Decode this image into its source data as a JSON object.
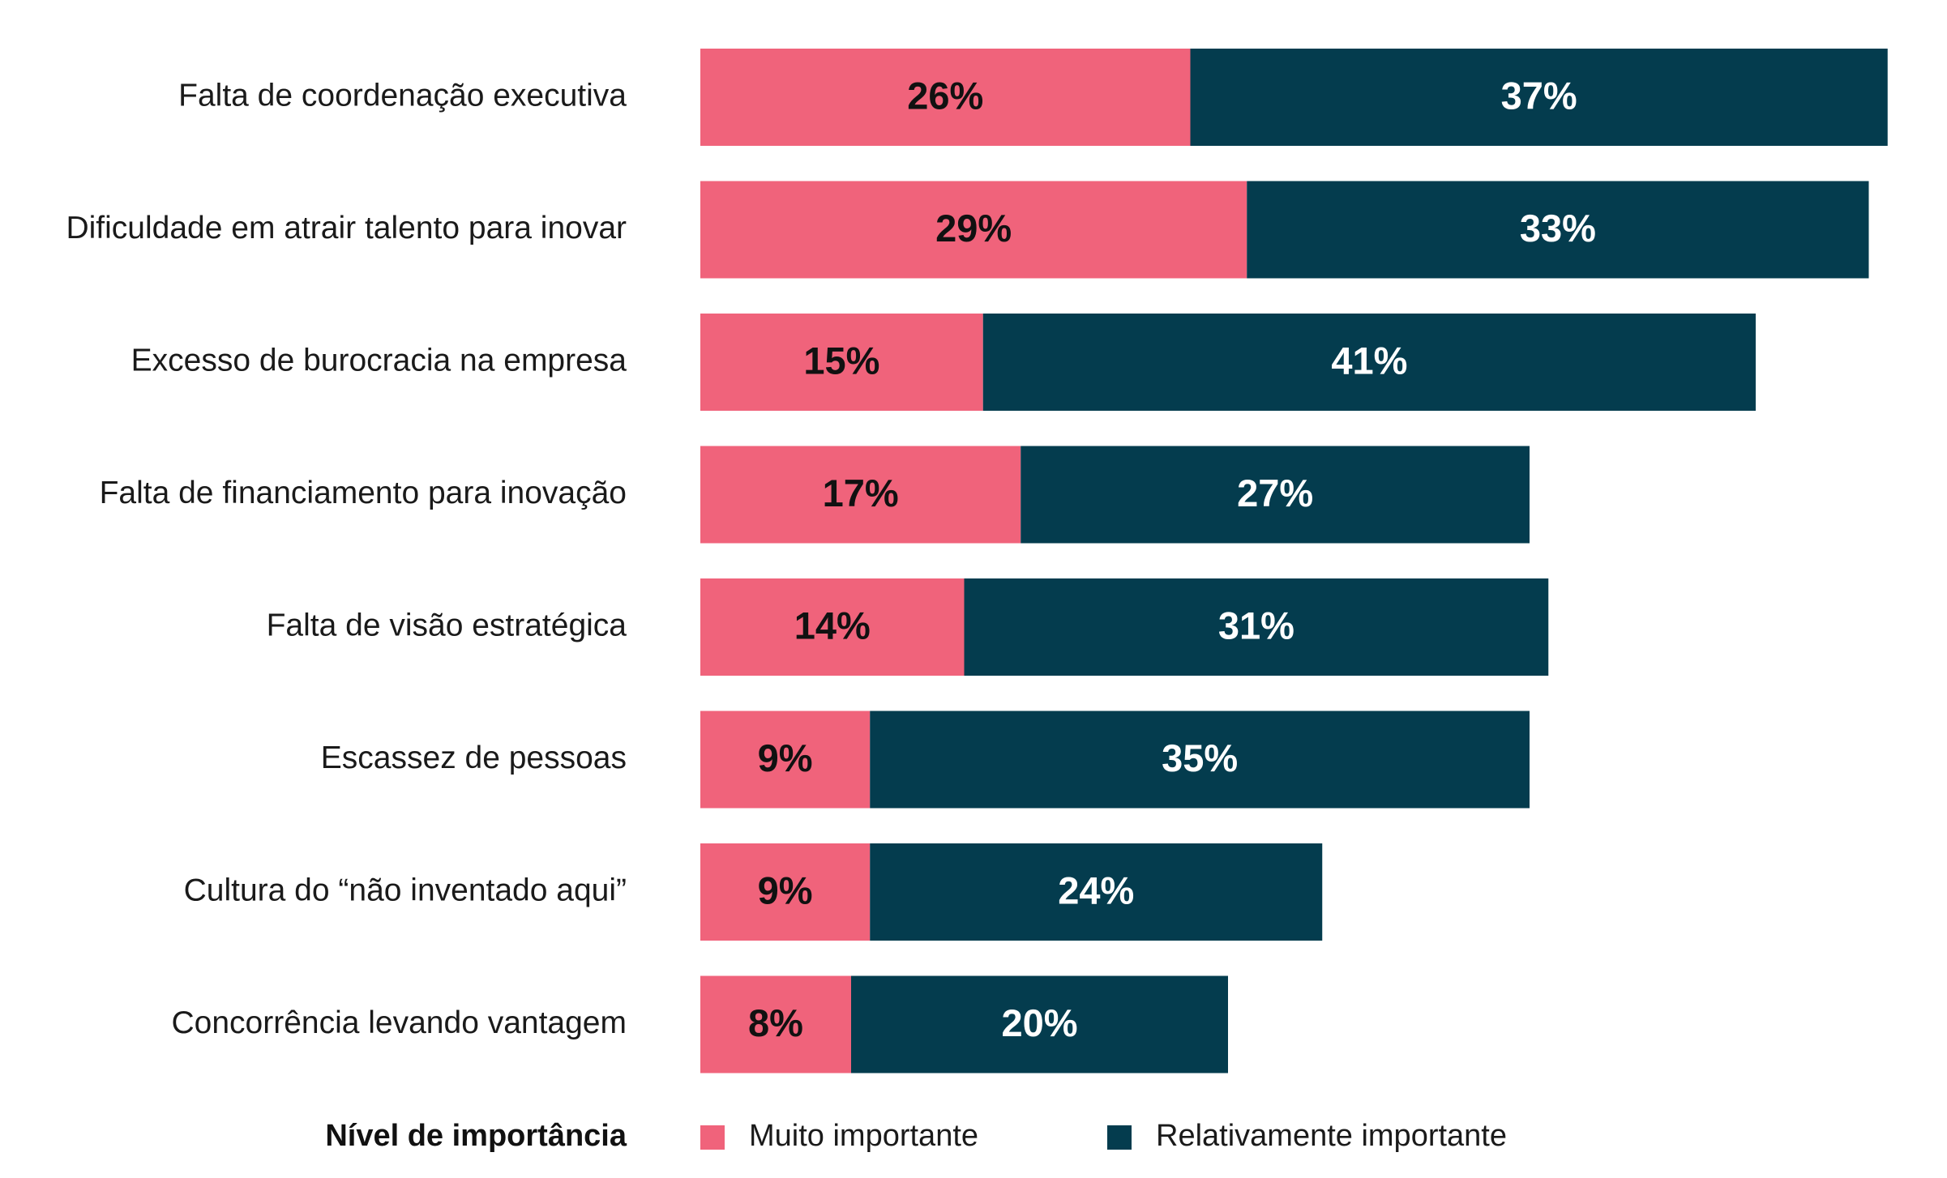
{
  "chart_data": {
    "type": "bar",
    "orientation": "horizontal",
    "stacked": true,
    "categories": [
      "Falta de coordenação executiva",
      "Dificuldade em atrair talento para inovar",
      "Excesso de burocracia na empresa",
      "Falta de financiamento para inovação",
      "Falta de visão estratégica",
      "Escassez de pessoas",
      "Cultura do “não inventado aqui”",
      "Concorrência levando vantagem"
    ],
    "series": [
      {
        "name": "Muito importante",
        "color": "#f0637b",
        "label_color": "#111111",
        "values": [
          26,
          29,
          15,
          17,
          14,
          9,
          9,
          8
        ],
        "value_labels": [
          "26%",
          "29%",
          "15%",
          "17%",
          "14%",
          "9%",
          "9%",
          "8%"
        ]
      },
      {
        "name": "Relativamente importante",
        "color": "#043c4e",
        "label_color": "#ffffff",
        "values": [
          37,
          33,
          41,
          27,
          31,
          35,
          24,
          20
        ],
        "value_labels": [
          "37%",
          "33%",
          "41%",
          "27%",
          "31%",
          "35%",
          "24%",
          "20%"
        ]
      }
    ],
    "legend": {
      "title": "Nível de importância",
      "placement": "bottom"
    },
    "grid": false,
    "axes_visible": false
  }
}
